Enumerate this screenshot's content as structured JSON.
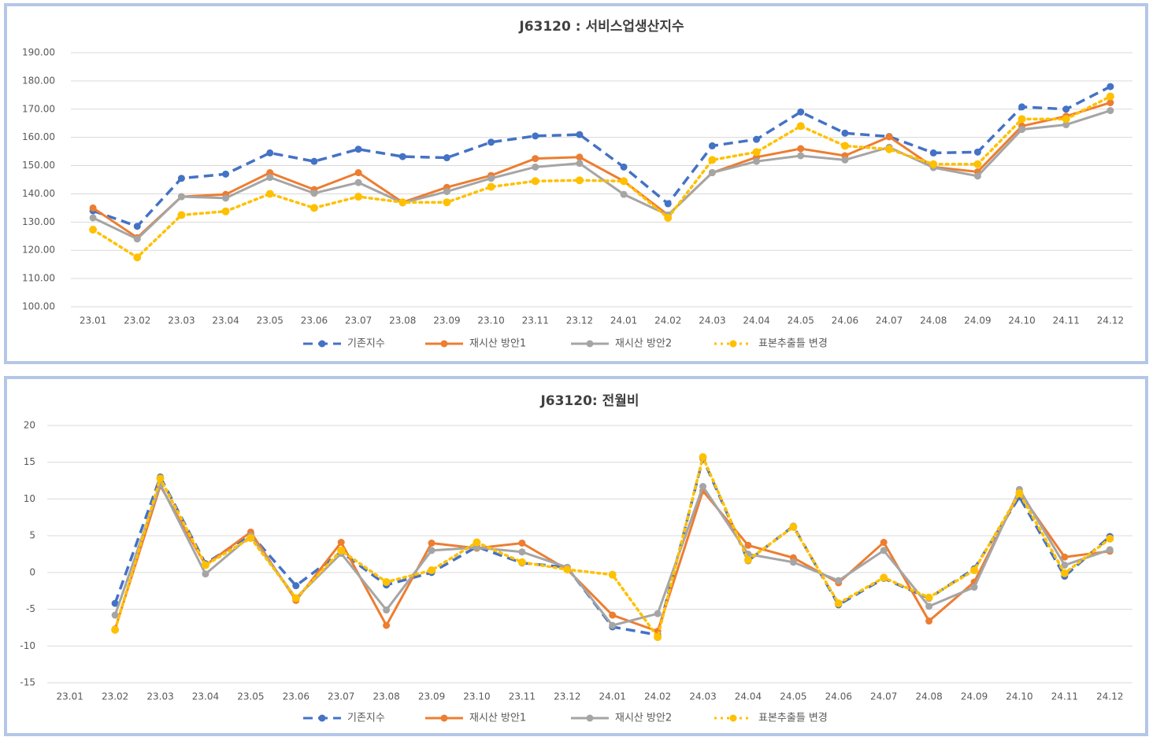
{
  "chart_data": [
    {
      "type": "line",
      "title": "J63120 : 서비스업생산지수",
      "categories": [
        "23.01",
        "23.02",
        "23.03",
        "23.04",
        "23.05",
        "23.06",
        "23.07",
        "23.08",
        "23.09",
        "23.10",
        "23.11",
        "23.12",
        "24.01",
        "24.02",
        "24.03",
        "24.04",
        "24.05",
        "24.06",
        "24.07",
        "24.08",
        "24.09",
        "24.10",
        "24.11",
        "24.12"
      ],
      "ylim": [
        100,
        190
      ],
      "yticks": [
        {
          "value": 100,
          "label": "100.00"
        },
        {
          "value": 110,
          "label": "110.00"
        },
        {
          "value": 120,
          "label": "120.00"
        },
        {
          "value": 130,
          "label": "130.00"
        },
        {
          "value": 140,
          "label": "140.00"
        },
        {
          "value": 150,
          "label": "150.00"
        },
        {
          "value": 160,
          "label": "160.00"
        },
        {
          "value": 170,
          "label": "170.00"
        },
        {
          "value": 180,
          "label": "180.00"
        },
        {
          "value": 190,
          "label": "190.00"
        }
      ],
      "grid": true,
      "legend": "bottom",
      "series": [
        {
          "name": "기존지수",
          "color": "#4472c4",
          "style": "dashed",
          "values": [
            134,
            128.5,
            145.5,
            147,
            154.5,
            151.5,
            155.8,
            153.2,
            152.8,
            158.3,
            160.5,
            161,
            149.5,
            136.5,
            157,
            159.3,
            169,
            161.5,
            160.3,
            154.5,
            154.8,
            170.8,
            170,
            178
          ]
        },
        {
          "name": "재시산 방안1",
          "color": "#ed7d31",
          "style": "solid",
          "values": [
            135,
            124.5,
            139,
            139.8,
            147.5,
            141.5,
            147.5,
            137,
            142.3,
            146.5,
            152.5,
            153,
            144.5,
            132.5,
            147.5,
            153,
            156,
            153.5,
            160.2,
            149.5,
            147.8,
            164,
            167.5,
            172.3
          ]
        },
        {
          "name": "재시산 방안2",
          "color": "#a5a5a5",
          "style": "solid",
          "values": [
            131.5,
            124,
            139,
            138.5,
            145.8,
            140.2,
            144,
            136.8,
            140.8,
            145.5,
            149.5,
            150.8,
            139.8,
            132.5,
            147.5,
            151.5,
            153.5,
            152,
            156.5,
            149.3,
            146.3,
            162.8,
            164.5,
            169.5
          ]
        },
        {
          "name": "표본추출틀 변경",
          "color": "#ffc000",
          "style": "dotted",
          "values": [
            127.3,
            117.5,
            132.5,
            133.8,
            140,
            135,
            139,
            137,
            137,
            142.5,
            144.5,
            144.8,
            144.5,
            131.5,
            152,
            154.8,
            164,
            157,
            155.8,
            150.5,
            150.5,
            166.5,
            166.5,
            174.5
          ]
        }
      ]
    },
    {
      "type": "line",
      "title": "J63120: 전월비",
      "categories": [
        "23.01",
        "23.02",
        "23.03",
        "23.04",
        "23.05",
        "23.06",
        "23.07",
        "23.08",
        "23.09",
        "23.10",
        "23.11",
        "23.12",
        "24.01",
        "24.02",
        "24.03",
        "24.04",
        "24.05",
        "24.06",
        "24.07",
        "24.08",
        "24.09",
        "24.10",
        "24.11",
        "24.12"
      ],
      "ylim": [
        -15,
        20
      ],
      "yticks": [
        -15,
        -10,
        -5,
        0,
        5,
        10,
        15,
        20
      ],
      "grid": true,
      "legend": "bottom",
      "series": [
        {
          "name": "기존지수",
          "color": "#4472c4",
          "style": "dashed",
          "values": [
            null,
            -4.2,
            13,
            1.2,
            5.2,
            -1.8,
            2.8,
            -1.7,
            0,
            3.5,
            1.3,
            0.7,
            -7.4,
            -8.5,
            15.5,
            1.6,
            6.3,
            -4.4,
            -0.8,
            -3.5,
            0.5,
            10.3,
            -0.5,
            4.9
          ]
        },
        {
          "name": "재시산 방안1",
          "color": "#ed7d31",
          "style": "solid",
          "values": [
            null,
            -7.7,
            11.8,
            1.0,
            5.5,
            -3.8,
            4.1,
            -7.2,
            4.0,
            3.3,
            4.0,
            0.4,
            -5.8,
            -8.0,
            11.1,
            3.7,
            2.0,
            -1.4,
            4.1,
            -6.6,
            -1.3,
            10.9,
            2.1,
            2.9
          ]
        },
        {
          "name": "재시산 방안2",
          "color": "#a5a5a5",
          "style": "solid",
          "values": [
            null,
            -5.8,
            12.0,
            -0.2,
            5.0,
            -3.5,
            2.6,
            -5.1,
            3.0,
            3.4,
            2.8,
            0.7,
            -7.2,
            -5.6,
            11.7,
            2.5,
            1.4,
            -1.1,
            3.0,
            -4.6,
            -2.0,
            11.3,
            1.0,
            3.1
          ]
        },
        {
          "name": "표본추출틀 변경",
          "color": "#ffc000",
          "style": "dotted",
          "values": [
            null,
            -7.8,
            12.8,
            1.0,
            4.7,
            -3.5,
            3.0,
            -1.3,
            0.3,
            4.1,
            1.4,
            0.4,
            -0.3,
            -8.8,
            15.7,
            1.7,
            6.2,
            -4.2,
            -0.7,
            -3.4,
            0.3,
            10.8,
            -0.1,
            4.6
          ]
        }
      ]
    }
  ]
}
